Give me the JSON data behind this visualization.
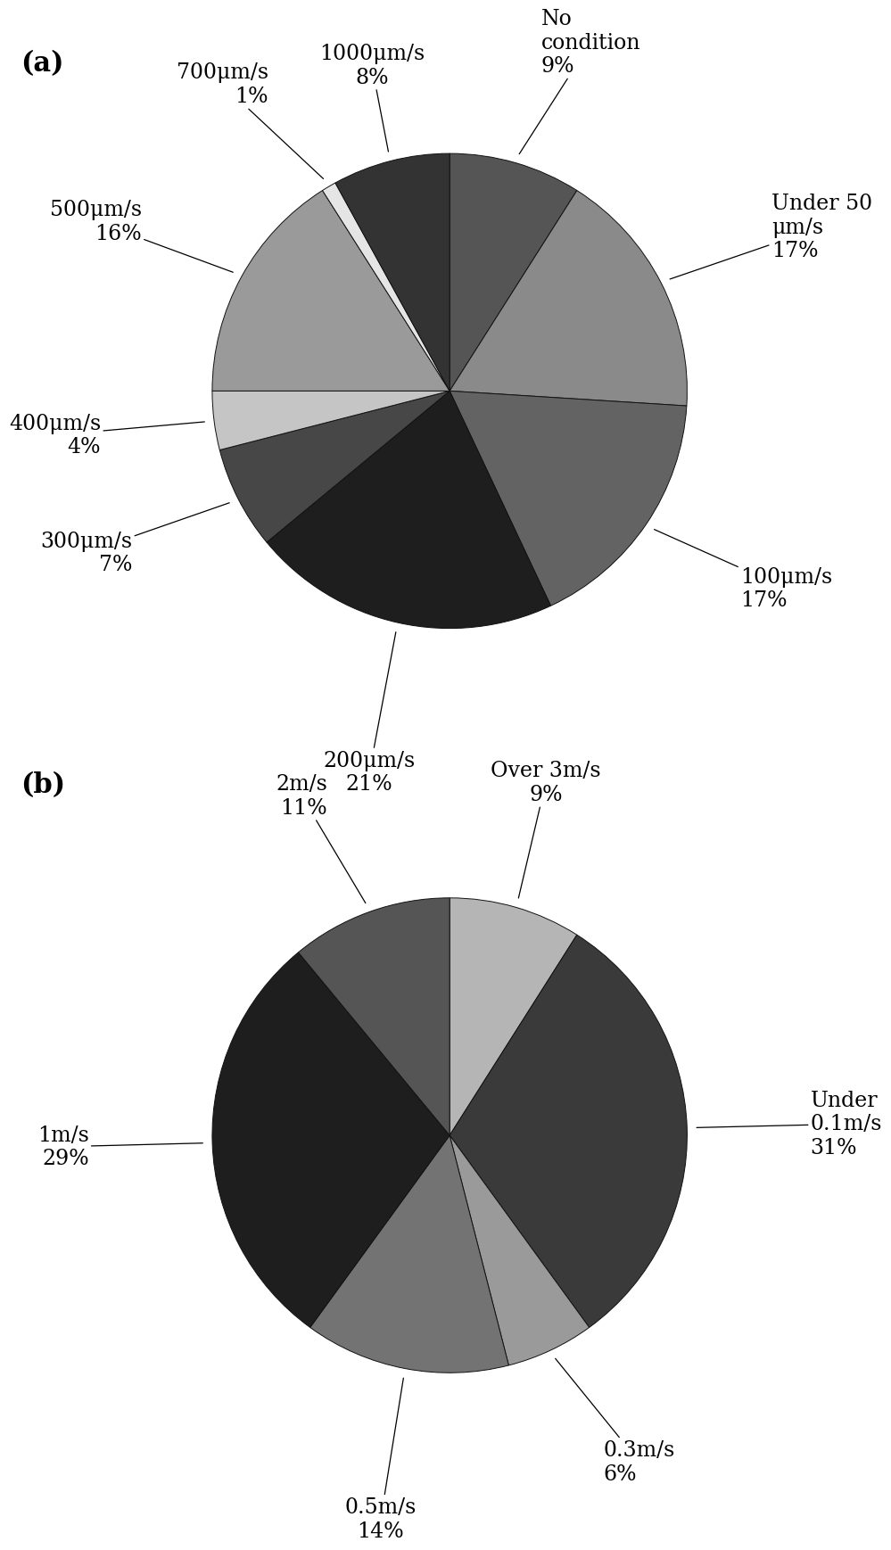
{
  "chart_a": {
    "values": [
      9,
      17,
      17,
      21,
      7,
      4,
      16,
      1,
      8
    ],
    "colors": [
      "#555555",
      "#8a8a8a",
      "#636363",
      "#1e1e1e",
      "#474747",
      "#c5c5c5",
      "#9a9a9a",
      "#e5e5e5",
      "#333333"
    ],
    "start_angle": 90,
    "label_texts": [
      "No\ncondition\n9%",
      "Under 50\nμm/s\n17%",
      "100μm/s\n17%",
      "200μm/s\n21%",
      "300μm/s\n7%",
      "400μm/s\n4%",
      "500μm/s\n16%",
      "700μm/s\n1%",
      "1000μm/s\n8%"
    ],
    "text_ha": [
      "left",
      "left",
      "left",
      "center",
      "right",
      "right",
      "right",
      "right",
      "center"
    ],
    "text_va": [
      "bottom",
      "center",
      "center",
      "top",
      "center",
      "center",
      "center",
      "center",
      "bottom"
    ],
    "text_r": [
      1.38,
      1.52,
      1.48,
      1.55,
      1.5,
      1.48,
      1.48,
      1.5,
      1.32
    ]
  },
  "chart_b": {
    "values": [
      9,
      31,
      6,
      14,
      29,
      11
    ],
    "colors": [
      "#b5b5b5",
      "#3a3a3a",
      "#9a9a9a",
      "#737373",
      "#1e1e1e",
      "#555555"
    ],
    "start_angle": 90,
    "label_texts": [
      "Over 3m/s\n9%",
      "Under\n0.1m/s\n31%",
      "0.3m/s\n6%",
      "0.5m/s\n14%",
      "1m/s\n29%",
      "2m/s\n11%"
    ],
    "text_ha": [
      "center",
      "left",
      "left",
      "center",
      "right",
      "right"
    ],
    "text_va": [
      "bottom",
      "center",
      "center",
      "top",
      "center",
      "center"
    ],
    "text_r": [
      1.45,
      1.52,
      1.52,
      1.55,
      1.52,
      1.52
    ]
  },
  "background_color": "#ffffff",
  "label_fontsize": 17,
  "panel_fontsize": 22
}
